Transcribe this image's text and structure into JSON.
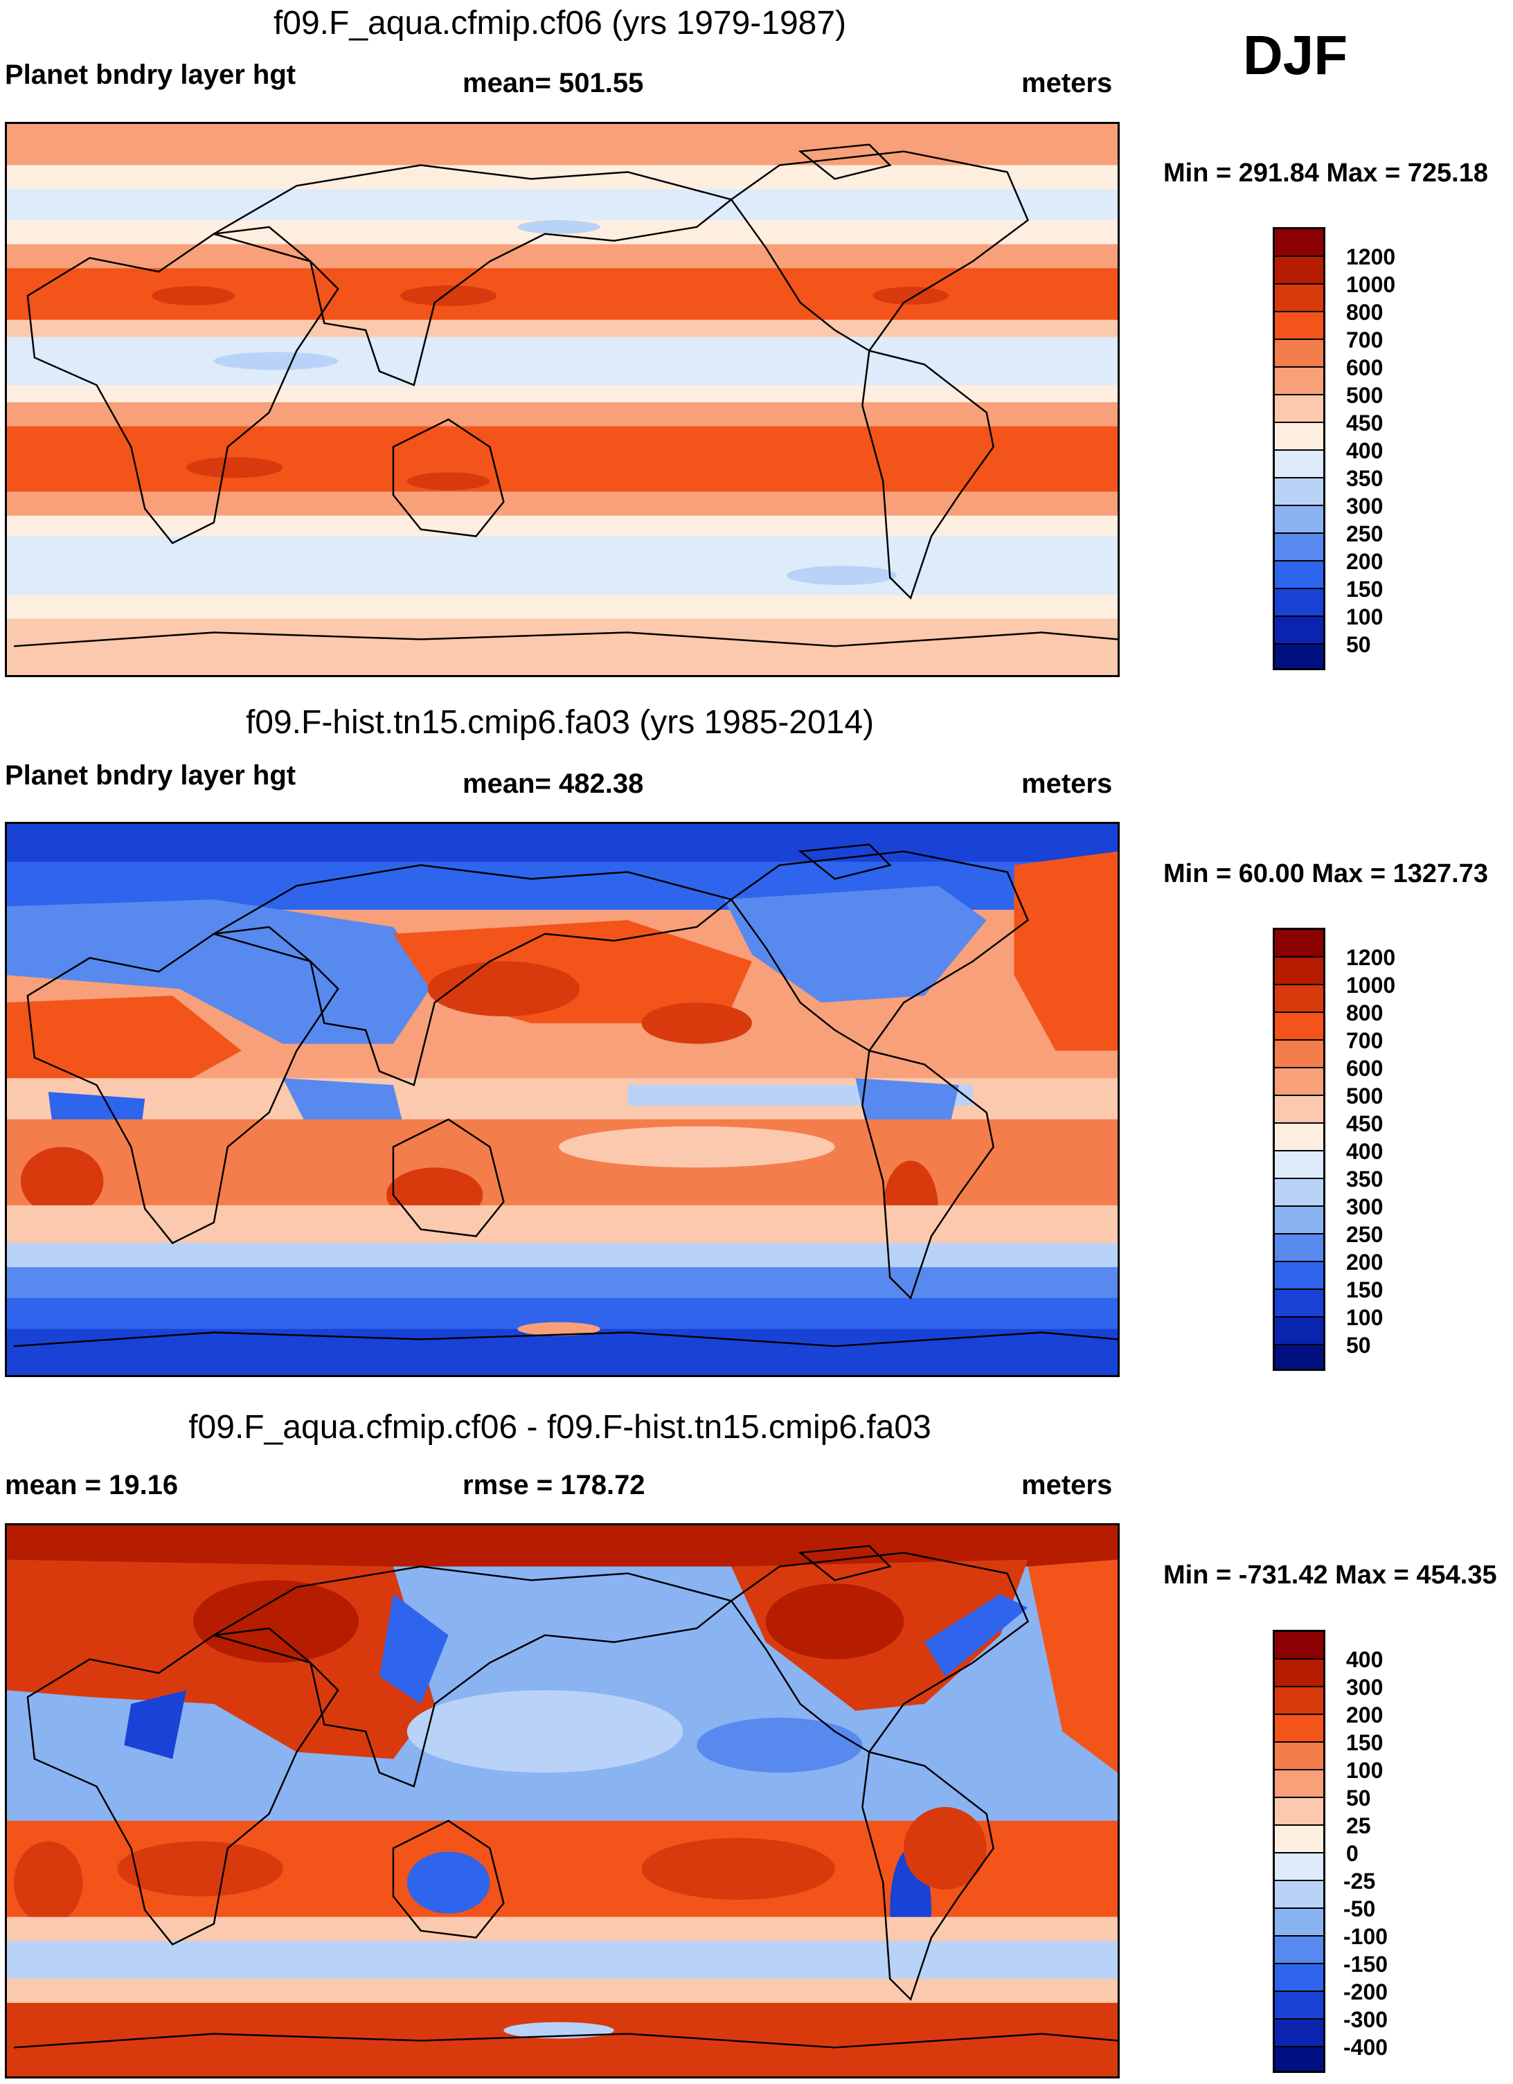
{
  "season": "DJF",
  "units_label": "meters",
  "panels": [
    {
      "title": "f09.F_aqua.cfmip.cf06 (yrs 1979-1987)",
      "left_label": "Planet bndry layer hgt",
      "center_label": "mean= 501.55",
      "right_label": "meters",
      "minmax": "Min = 291.84 Max = 725.18"
    },
    {
      "title": "f09.F-hist.tn15.cmip6.fa03 (yrs 1985-2014)",
      "left_label": "Planet bndry layer hgt",
      "center_label": "mean= 482.38",
      "right_label": "meters",
      "minmax": "Min =  60.00 Max = 1327.73"
    },
    {
      "title": "f09.F_aqua.cfmip.cf06 - f09.F-hist.tn15.cmip6.fa03",
      "left_label": "mean =  19.16",
      "center_label": "rmse = 178.72",
      "right_label": "meters",
      "minmax": "Min = -731.42 Max = 454.35"
    }
  ],
  "colorbars": {
    "field": {
      "labels": [
        "1200",
        "1000",
        "800",
        "700",
        "600",
        "500",
        "450",
        "400",
        "350",
        "300",
        "250",
        "200",
        "150",
        "100",
        "50"
      ],
      "colors": [
        "#8b0000",
        "#b51c00",
        "#d83a0e",
        "#f2541a",
        "#f47d4c",
        "#f7a07a",
        "#fbc9ad",
        "#fdeee0",
        "#ddebfa",
        "#b8d3f7",
        "#8ab3f2",
        "#5889ee",
        "#2f64ec",
        "#1942d6",
        "#0a24b0",
        "#001080"
      ]
    },
    "diff": {
      "labels": [
        "400",
        "300",
        "200",
        "150",
        "100",
        "50",
        "25",
        "0",
        "-25",
        "-50",
        "-100",
        "-150",
        "-200",
        "-300",
        "-400"
      ],
      "colors": [
        "#8b0000",
        "#b51c00",
        "#d83a0e",
        "#f2541a",
        "#f47d4c",
        "#f7a07a",
        "#fbc9ad",
        "#fdeee0",
        "#ddebfa",
        "#b8d3f7",
        "#8ab3f2",
        "#5889ee",
        "#2f64ec",
        "#1942d6",
        "#0a24b0",
        "#001080"
      ]
    }
  }
}
